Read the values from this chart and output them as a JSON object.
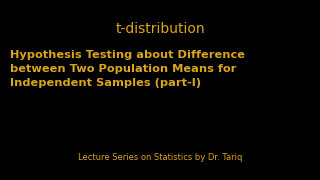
{
  "background_color": "#000000",
  "title_text": "t-distribution",
  "title_color": "#DAA520",
  "title_fontsize": 10,
  "body_text": "Hypothesis Testing about Difference\nbetween Two Population Means for\nIndependent Samples (part-I)",
  "body_color": "#DAA520",
  "body_fontsize": 8.2,
  "footer_text": "Lecture Series on Statistics by Dr. Tariq",
  "footer_color": "#DAA520",
  "footer_fontsize": 6.0,
  "fig_width": 3.2,
  "fig_height": 1.8,
  "fig_dpi": 100
}
